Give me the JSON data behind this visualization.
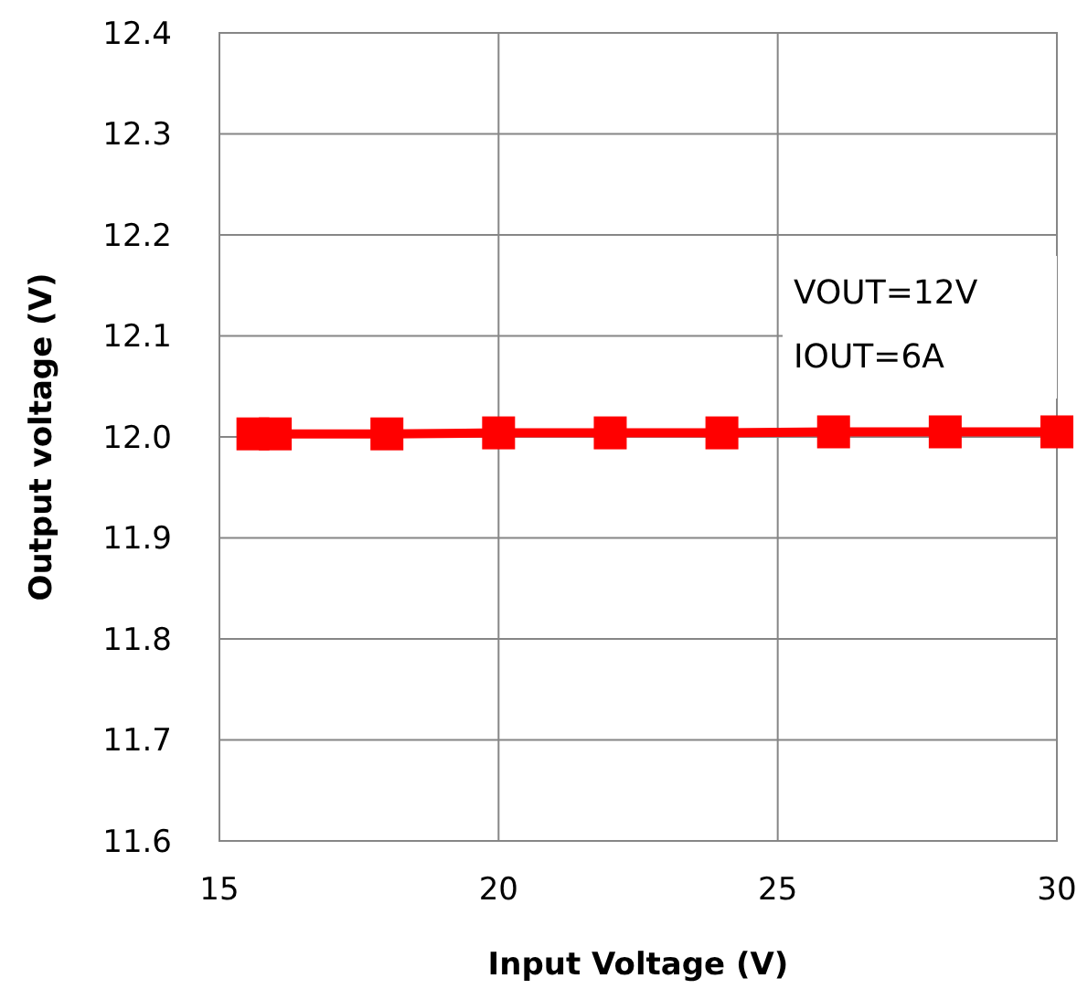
{
  "chart_data": {
    "type": "line",
    "xlabel": "Input Voltage (V)",
    "ylabel": "Output voltage (V)",
    "x": [
      15.6,
      16,
      18,
      20,
      22,
      24,
      26,
      28,
      30
    ],
    "series": [
      {
        "color": "#ff0000",
        "values": [
          12.003,
          12.003,
          12.003,
          12.004,
          12.004,
          12.004,
          12.005,
          12.005,
          12.005
        ]
      }
    ],
    "xlim": [
      15,
      30
    ],
    "xticks": [
      15,
      20,
      25,
      30
    ],
    "ylim": [
      11.6,
      12.4
    ],
    "yticks": [
      11.6,
      11.7,
      11.8,
      11.9,
      {
        "value": 12.0,
        "label": "12.0"
      },
      12.1,
      12.2,
      12.3,
      12.4
    ],
    "grid": true,
    "marker": "square",
    "line_style": "solid",
    "annotations": [
      "VOUT=12V",
      "IOUT=6A"
    ]
  }
}
